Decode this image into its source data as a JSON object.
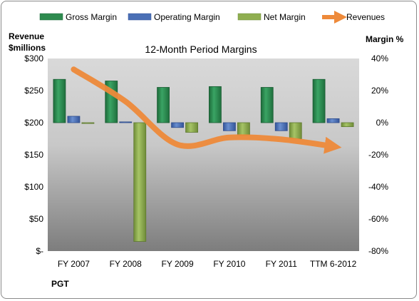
{
  "chart_data": {
    "type": "bar",
    "title": "12-Month Period Margins",
    "company": "PGT",
    "left_axis": {
      "label_line1": "Revenue",
      "label_line2": "$millions",
      "ticks": [
        "$300",
        "$250",
        "$200",
        "$150",
        "$100",
        "$50",
        "$-"
      ],
      "range": [
        0,
        300
      ]
    },
    "right_axis": {
      "label": "Margin %",
      "ticks": [
        "40%",
        "20%",
        "0%",
        "-20%",
        "-40%",
        "-60%",
        "-80%"
      ],
      "range": [
        -80,
        40
      ]
    },
    "categories": [
      "FY 2007",
      "FY 2008",
      "FY 2009",
      "FY 2010",
      "FY 2011",
      "TTM 6-2012"
    ],
    "series": [
      {
        "name": "Gross Margin",
        "axis": "right",
        "color": "#2e8b4f",
        "values": [
          27.0,
          26.0,
          22.0,
          22.5,
          22.0,
          27.0
        ]
      },
      {
        "name": "Operating Margin",
        "axis": "right",
        "color": "#4a6fb5",
        "values": [
          4.0,
          0.5,
          -3.0,
          -5.0,
          -5.0,
          2.5
        ]
      },
      {
        "name": "Net Margin",
        "axis": "right",
        "color": "#8fae50",
        "values": [
          -0.5,
          -74.0,
          -6.0,
          -8.0,
          -10.0,
          -2.5
        ]
      },
      {
        "name": "Revenues",
        "axis": "left",
        "type": "line",
        "color": "#ee8a3a",
        "values": [
          283,
          233,
          166,
          177,
          174,
          163
        ]
      }
    ],
    "legend_position": "top",
    "grid": false
  }
}
